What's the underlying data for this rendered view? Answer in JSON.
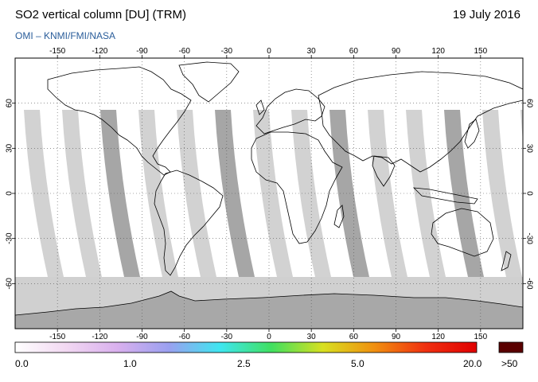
{
  "header": {
    "title": "SO2 vertical column [DU] (TRM)",
    "date": "19 July 2016",
    "subtitle": "OMI  –  KNMI/FMI/NASA"
  },
  "map": {
    "lon_ticks": [
      "-150",
      "-120",
      "-90",
      "-60",
      "-30",
      "0",
      "30",
      "60",
      "90",
      "120",
      "150"
    ],
    "lat_ticks": [
      "60",
      "30",
      "0",
      "-30",
      "-60"
    ],
    "lon_range": [
      -180,
      180
    ],
    "lat_range": [
      -90,
      90
    ],
    "colors": {
      "swath_light": "#d2d2d2",
      "swath_dark": "#a6a6a6",
      "coast": "#000000",
      "grid": "#555555"
    }
  },
  "colorbar": {
    "labels": [
      "0.0",
      "1.0",
      "2.5",
      "5.0",
      "20.0"
    ],
    "over_label": ">50",
    "stops": [
      "#ffffff",
      "#f2d8f2",
      "#d9b0ee",
      "#9aa0f0",
      "#3ee6f0",
      "#40e060",
      "#d8e020",
      "#f09010",
      "#f03010",
      "#e00000"
    ],
    "over_color": "#5a0000"
  }
}
